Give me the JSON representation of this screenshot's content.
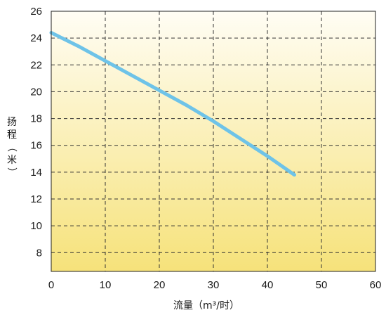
{
  "chart_data": {
    "type": "line",
    "title": "",
    "xlabel": "流量（m³/时）",
    "ylabel_chars": [
      "扬",
      "程",
      "（",
      "米",
      "）"
    ],
    "xlim": [
      0,
      60
    ],
    "ylim": [
      6.6,
      26
    ],
    "x_ticks": [
      0,
      10,
      20,
      30,
      40,
      50,
      60
    ],
    "y_ticks": [
      8,
      10,
      12,
      14,
      16,
      18,
      20,
      22,
      24,
      26
    ],
    "grid": true,
    "grid_style": "dashed",
    "background_gradient": [
      "#fffdf4",
      "#f6e27a"
    ],
    "line_color": "#6ec3e8",
    "series": [
      {
        "x": [
          0,
          5,
          10,
          15,
          20,
          25,
          30,
          35,
          40,
          45
        ],
        "y": [
          24.4,
          23.4,
          22.3,
          21.2,
          20.1,
          19.0,
          17.8,
          16.5,
          15.2,
          13.8
        ]
      }
    ]
  }
}
